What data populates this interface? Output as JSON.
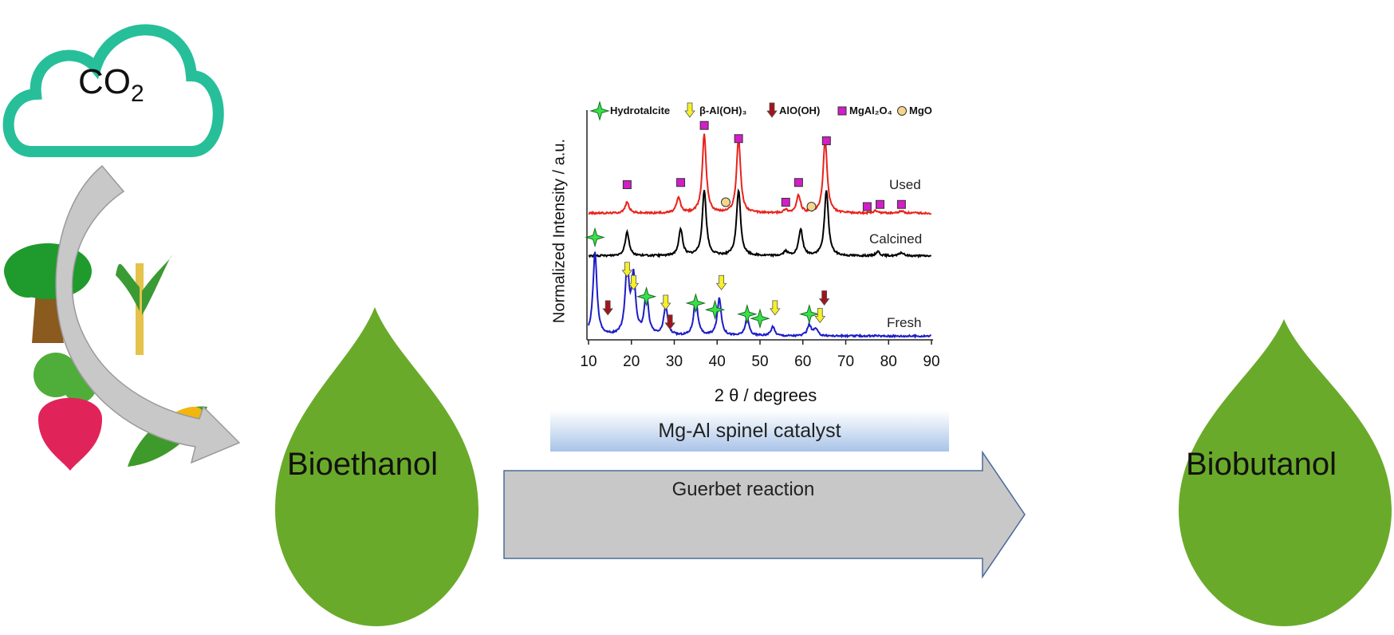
{
  "cloud": {
    "label": "CO",
    "subscript": "2"
  },
  "drops": {
    "left": "Bioethanol",
    "right": "Biobutanol"
  },
  "catalyst_label": "Mg-Al spinel catalyst",
  "reaction_label": "Guerbet reaction",
  "colors": {
    "drop": "#6aaa2a",
    "cloud": "#26bf9a",
    "arrow": "#c8c8c8",
    "used": "#e8221b",
    "calcined": "#000000",
    "fresh": "#1c1cc8"
  },
  "chart_data": {
    "type": "line",
    "title": "",
    "xlabel": "2 θ / degrees",
    "ylabel": "Normalized Intensity / a.u.",
    "xlim": [
      10,
      90
    ],
    "ylim": [
      0,
      100
    ],
    "xticks": [
      "10",
      "20",
      "30",
      "40",
      "50",
      "60",
      "70",
      "80",
      "90"
    ],
    "grid": false,
    "legend": [
      {
        "label": "Hydrotalcite",
        "marker": "star"
      },
      {
        "label": "β-Al(OH)₃",
        "marker": "yellow-arrow"
      },
      {
        "label": "AlO(OH)",
        "marker": "red-arrow"
      },
      {
        "label": "MgAl₂O₄",
        "marker": "square"
      },
      {
        "label": "MgO",
        "marker": "circle"
      }
    ],
    "legend_placement": "top",
    "series": [
      {
        "name": "Used",
        "color": "#e8221b",
        "baseline": 57,
        "peaks": [
          [
            19,
            5
          ],
          [
            31,
            7
          ],
          [
            37,
            36
          ],
          [
            45,
            34
          ],
          [
            56,
            1.5
          ],
          [
            59,
            8
          ],
          [
            65.2,
            34
          ],
          [
            77,
            1
          ],
          [
            83,
            1
          ]
        ]
      },
      {
        "name": "Calcined",
        "color": "#000000",
        "baseline": 37.5,
        "peaks": [
          [
            19,
            11
          ],
          [
            31.5,
            12
          ],
          [
            37,
            30
          ],
          [
            45,
            30
          ],
          [
            56,
            2
          ],
          [
            59.5,
            12
          ],
          [
            65.5,
            30
          ],
          [
            77.5,
            2
          ],
          [
            83,
            1.5
          ]
        ]
      },
      {
        "name": "Fresh",
        "color": "#1c1cc8",
        "baseline": 1,
        "peaks": [
          [
            11.5,
            38
          ],
          [
            19,
            30
          ],
          [
            20.5,
            26
          ],
          [
            23.5,
            19
          ],
          [
            28,
            13
          ],
          [
            35,
            17
          ],
          [
            40.5,
            17
          ],
          [
            47,
            8
          ],
          [
            53,
            4
          ],
          [
            61.5,
            5
          ],
          [
            63,
            3
          ]
        ]
      }
    ],
    "markers": [
      {
        "type": "square",
        "x": 19,
        "y": 70
      },
      {
        "type": "square",
        "x": 31.5,
        "y": 71
      },
      {
        "type": "square",
        "x": 37,
        "y": 97
      },
      {
        "type": "square",
        "x": 45,
        "y": 91
      },
      {
        "type": "square",
        "x": 56,
        "y": 62
      },
      {
        "type": "square",
        "x": 59,
        "y": 71
      },
      {
        "type": "square",
        "x": 65.5,
        "y": 90
      },
      {
        "type": "square",
        "x": 75,
        "y": 60
      },
      {
        "type": "square",
        "x": 78,
        "y": 61
      },
      {
        "type": "square",
        "x": 83,
        "y": 61
      },
      {
        "type": "circle",
        "x": 42,
        "y": 62
      },
      {
        "type": "circle",
        "x": 62,
        "y": 60
      },
      {
        "type": "star",
        "x": 11.5,
        "y": 46
      },
      {
        "type": "star",
        "x": 23.5,
        "y": 19
      },
      {
        "type": "star",
        "x": 35,
        "y": 16
      },
      {
        "type": "star",
        "x": 39.5,
        "y": 13
      },
      {
        "type": "star",
        "x": 47,
        "y": 11
      },
      {
        "type": "star",
        "x": 50,
        "y": 9
      },
      {
        "type": "star",
        "x": 61.5,
        "y": 11
      },
      {
        "type": "yellow-arrow",
        "x": 19,
        "y": 31
      },
      {
        "type": "yellow-arrow",
        "x": 20.5,
        "y": 25
      },
      {
        "type": "yellow-arrow",
        "x": 28,
        "y": 16
      },
      {
        "type": "yellow-arrow",
        "x": 41,
        "y": 25
      },
      {
        "type": "yellow-arrow",
        "x": 53.5,
        "y": 13.5
      },
      {
        "type": "yellow-arrow",
        "x": 64,
        "y": 10
      },
      {
        "type": "red-arrow",
        "x": 14.5,
        "y": 13.5
      },
      {
        "type": "red-arrow",
        "x": 29,
        "y": 7
      },
      {
        "type": "red-arrow",
        "x": 65,
        "y": 18
      }
    ]
  }
}
